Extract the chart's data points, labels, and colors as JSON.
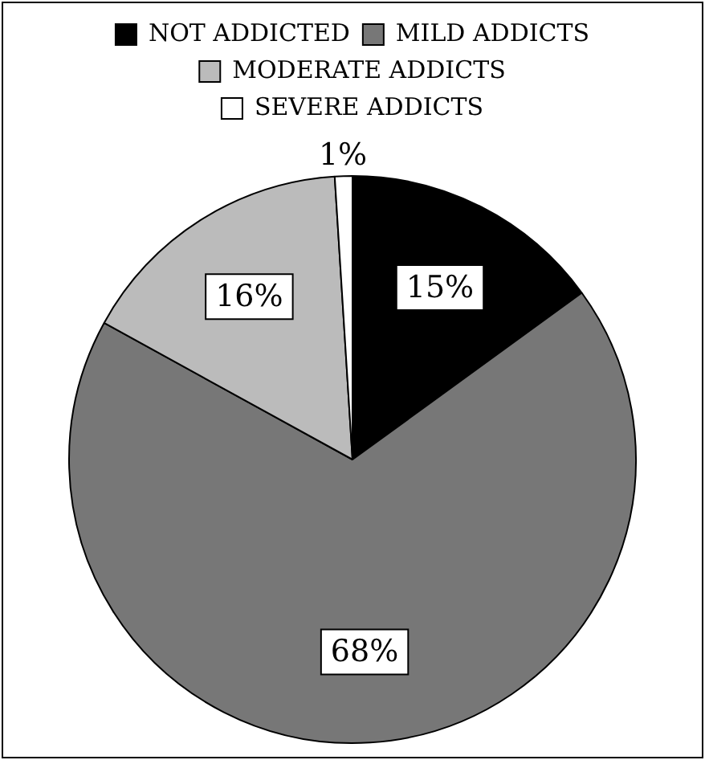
{
  "chart_data": {
    "type": "pie",
    "categories": [
      "NOT ADDICTED",
      "MILD ADDICTS",
      "MODERATE ADDICTS",
      "SEVERE ADDICTS"
    ],
    "values": [
      15,
      68,
      16,
      1
    ],
    "colors": [
      "#000000",
      "#777777",
      "#bbbbbb",
      "#ffffff"
    ],
    "value_labels": [
      "15%",
      "68%",
      "16%",
      "1%"
    ],
    "legend": "top"
  }
}
